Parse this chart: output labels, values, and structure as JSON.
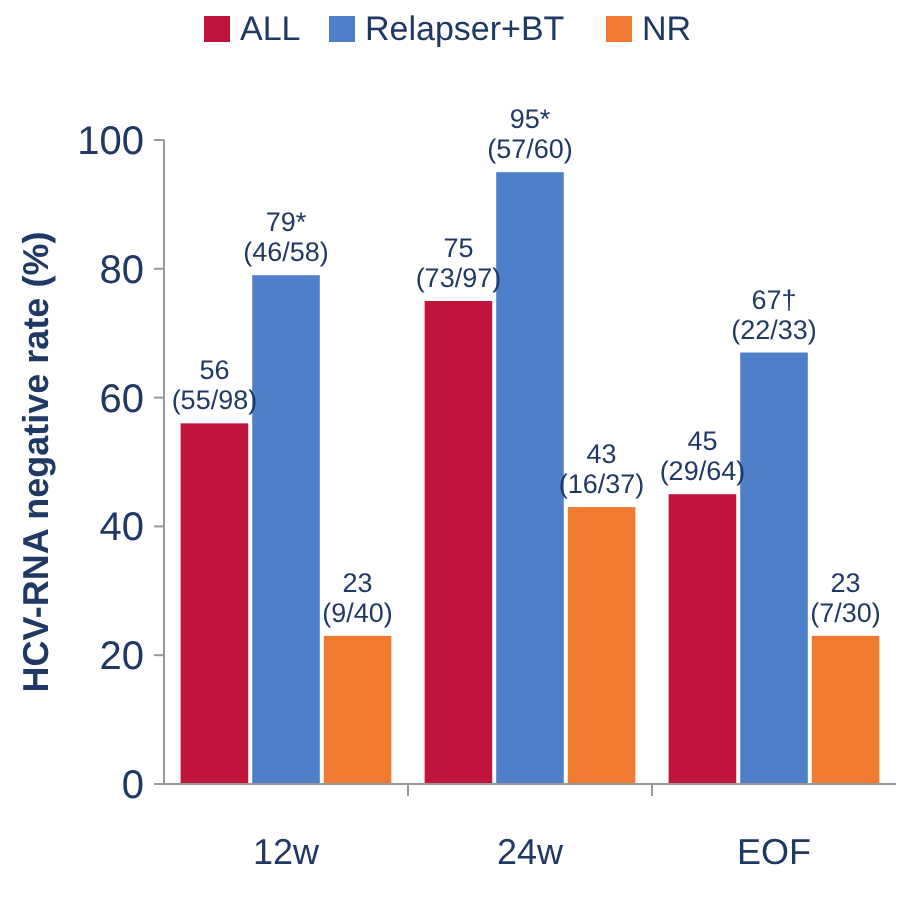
{
  "chart_data": {
    "type": "bar",
    "ylabel": "HCV-RNA negative rate (%)",
    "categories": [
      "12w",
      "24w",
      "EOF"
    ],
    "series": [
      {
        "name": "ALL",
        "color": "#c0143c",
        "values": [
          56,
          75,
          45
        ],
        "value_labels": [
          "56\n(55/98)",
          "75\n(73/97)",
          "45\n(29/64)"
        ]
      },
      {
        "name": "Relapser+BT",
        "color": "#4f7fc8",
        "values": [
          79,
          95,
          67
        ],
        "value_labels": [
          "79*\n(46/58)",
          "95*\n(57/60)",
          "67†\n(22/33)"
        ]
      },
      {
        "name": "NR",
        "color": "#f07a30",
        "values": [
          23,
          43,
          23
        ],
        "value_labels": [
          "23\n(9/40)",
          "43\n(16/37)",
          "23\n(7/30)"
        ]
      }
    ],
    "ylim": [
      0,
      100
    ],
    "yticks": [
      0,
      20,
      40,
      60,
      80,
      100
    ],
    "legend": "top",
    "grid": false
  }
}
